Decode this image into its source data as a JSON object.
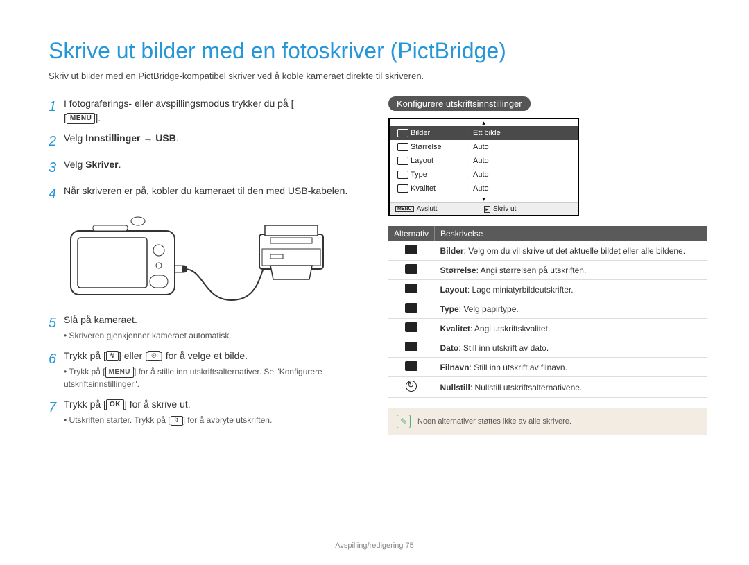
{
  "title": "Skrive ut bilder med en fotoskriver (PictBridge)",
  "intro": "Skriv ut bilder med en PictBridge-kompatibel skriver ved å koble kameraet direkte til skriveren.",
  "steps": {
    "s1_a": "I fotograferings- eller avspillingsmodus trykker du på [",
    "s1_b": "].",
    "menu_label": "MENU",
    "s2_a": "Velg ",
    "s2_b": "Innstillinger → USB",
    "s2_c": ".",
    "s3_a": "Velg ",
    "s3_b": "Skriver",
    "s3_c": ".",
    "s4": "Når skriveren er på, kobler du kameraet til den med USB-kabelen.",
    "s5": "Slå på kameraet.",
    "s5_sub": "Skriveren gjenkjenner kameraet automatisk.",
    "s6_a": "Trykk på [",
    "s6_b": "] eller [",
    "s6_c": "] for å velge et bilde.",
    "s6_key1": "↯",
    "s6_key2": "⏲",
    "s6_sub_a": "Trykk på [",
    "s6_sub_b": "] for å stille inn utskriftsalternativer. Se \"Konfigurere utskriftsinnstillinger\".",
    "s7_a": "Trykk på [",
    "s7_b": "] for å skrive ut.",
    "ok_label": "OK",
    "s7_sub_a": "Utskriften starter. Trykk på [",
    "s7_sub_b": "] for å avbryte utskriften.",
    "s7_key": "↯"
  },
  "right_header": "Konfigurere utskriftsinnstillinger",
  "lcd": {
    "rows": [
      {
        "label": "Bilder",
        "val": "Ett bilde",
        "sel": true
      },
      {
        "label": "Størrelse",
        "val": "Auto",
        "sel": false
      },
      {
        "label": "Layout",
        "val": "Auto",
        "sel": false
      },
      {
        "label": "Type",
        "val": "Auto",
        "sel": false
      },
      {
        "label": "Kvalitet",
        "val": "Auto",
        "sel": false
      }
    ],
    "foot_left_label": "Avslutt",
    "foot_left_key": "MENU",
    "foot_right_label": "Skriv ut",
    "foot_right_key": "▸"
  },
  "table": {
    "h1": "Alternativ",
    "h2": "Beskrivelse",
    "rows": [
      {
        "k": "Bilder",
        "v": ": Velg om du vil skrive ut det aktuelle bildet eller alle bildene."
      },
      {
        "k": "Størrelse",
        "v": ": Angi størrelsen på utskriften."
      },
      {
        "k": "Layout",
        "v": ": Lage miniatyrbildeutskrifter."
      },
      {
        "k": "Type",
        "v": ": Velg papirtype."
      },
      {
        "k": "Kvalitet",
        "v": ": Angi utskriftskvalitet."
      },
      {
        "k": "Dato",
        "v": ": Still inn utskrift av dato."
      },
      {
        "k": "Filnavn",
        "v": ": Still inn utskrift av filnavn."
      },
      {
        "k": "Nullstill",
        "v": ": Nullstill utskriftsalternativene."
      }
    ]
  },
  "note": "Noen alternativer støttes ikke av alle skrivere.",
  "footer": "Avspilling/redigering  75",
  "colors": {
    "accent": "#2596d8",
    "header_bg": "#555555",
    "note_bg": "#f3ece2"
  }
}
